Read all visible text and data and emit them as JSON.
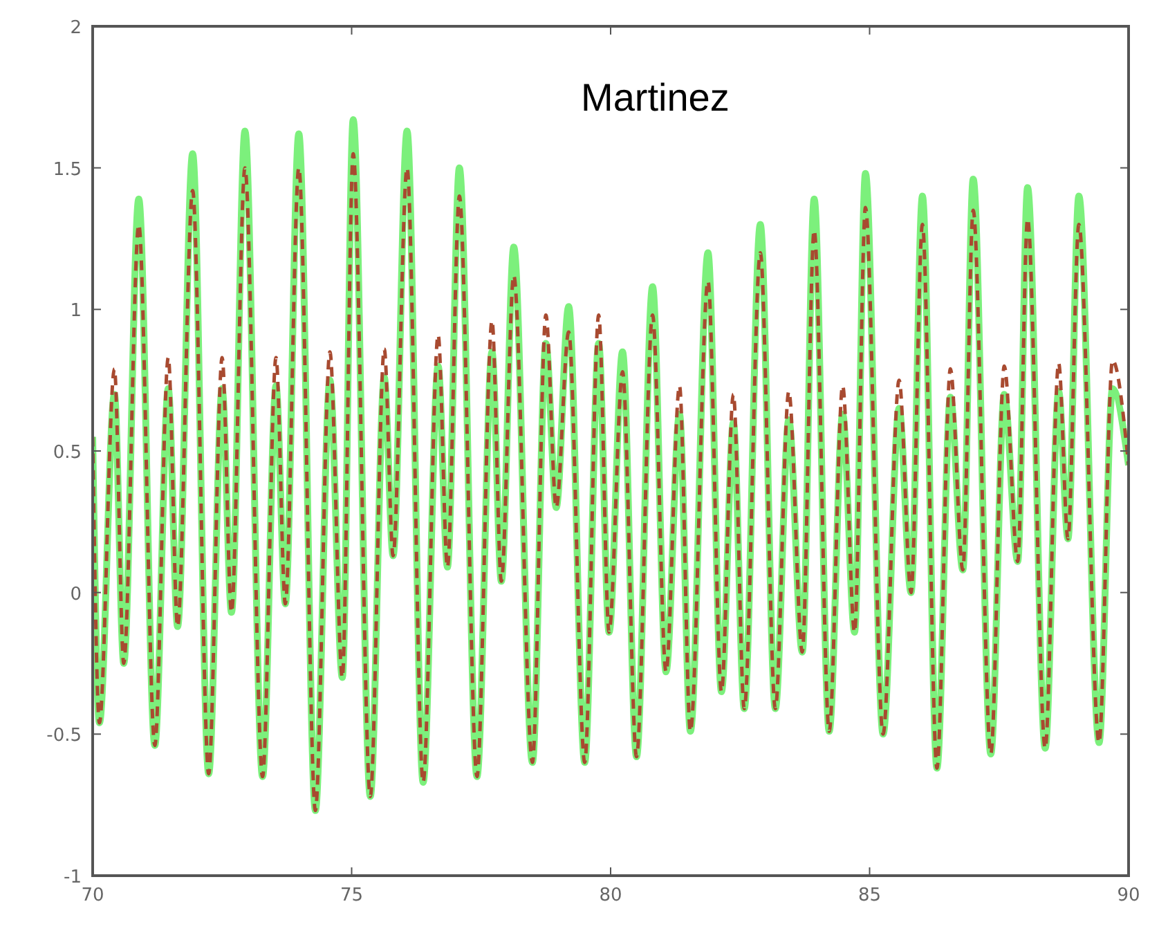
{
  "chart_data": {
    "type": "line",
    "annotations": [
      "Martinez"
    ],
    "x": [
      70.0,
      70.13,
      70.42,
      70.6,
      70.89,
      71.2,
      71.46,
      71.64,
      71.93,
      72.24,
      72.5,
      72.68,
      72.94,
      73.28,
      73.54,
      73.72,
      73.98,
      74.3,
      74.58,
      74.82,
      75.03,
      75.36,
      75.63,
      75.8,
      76.07,
      76.38,
      76.67,
      76.85,
      77.08,
      77.42,
      77.71,
      77.89,
      78.13,
      78.49,
      78.75,
      78.95,
      79.19,
      79.5,
      79.77,
      79.97,
      80.23,
      80.5,
      80.81,
      81.07,
      81.33,
      81.54,
      81.88,
      82.14,
      82.37,
      82.58,
      82.89,
      83.18,
      83.44,
      83.7,
      83.93,
      84.22,
      84.48,
      84.71,
      84.92,
      85.26,
      85.57,
      85.8,
      86.02,
      86.3,
      86.56,
      86.8,
      87.0,
      87.34,
      87.6,
      87.86,
      88.05,
      88.39,
      88.65,
      88.83,
      89.04,
      89.43,
      89.69,
      90.0
    ],
    "series": [
      {
        "color": "#7cf07c",
        "line_style": "solid",
        "values": [
          0.55,
          -0.46,
          0.7,
          -0.25,
          1.39,
          -0.54,
          0.72,
          -0.12,
          1.55,
          -0.64,
          0.72,
          -0.07,
          1.63,
          -0.65,
          0.73,
          -0.04,
          1.62,
          -0.77,
          0.75,
          -0.3,
          1.67,
          -0.72,
          0.76,
          0.13,
          1.63,
          -0.67,
          0.8,
          0.09,
          1.5,
          -0.65,
          0.85,
          0.04,
          1.22,
          -0.6,
          0.88,
          0.3,
          1.01,
          -0.6,
          0.88,
          -0.14,
          0.85,
          -0.58,
          1.08,
          -0.28,
          0.63,
          -0.49,
          1.2,
          -0.35,
          0.6,
          -0.41,
          1.3,
          -0.41,
          0.61,
          -0.21,
          1.39,
          -0.49,
          0.63,
          -0.14,
          1.48,
          -0.5,
          0.65,
          0.0,
          1.4,
          -0.62,
          0.69,
          0.08,
          1.46,
          -0.57,
          0.7,
          0.11,
          1.43,
          -0.55,
          0.71,
          0.19,
          1.4,
          -0.53,
          0.72,
          0.45
        ]
      },
      {
        "color": "#a84a30",
        "line_style": "dashed",
        "values": [
          0.55,
          -0.46,
          0.79,
          -0.25,
          1.3,
          -0.54,
          0.83,
          -0.12,
          1.42,
          -0.64,
          0.83,
          -0.07,
          1.5,
          -0.65,
          0.83,
          -0.04,
          1.5,
          -0.77,
          0.85,
          -0.3,
          1.55,
          -0.72,
          0.86,
          0.13,
          1.5,
          -0.67,
          0.91,
          0.09,
          1.4,
          -0.65,
          0.96,
          0.04,
          1.12,
          -0.6,
          0.98,
          0.3,
          0.92,
          -0.6,
          0.98,
          -0.14,
          0.78,
          -0.58,
          0.98,
          -0.28,
          0.73,
          -0.49,
          1.1,
          -0.35,
          0.7,
          -0.41,
          1.2,
          -0.41,
          0.71,
          -0.21,
          1.28,
          -0.49,
          0.73,
          -0.14,
          1.36,
          -0.5,
          0.75,
          0.0,
          1.3,
          -0.62,
          0.79,
          0.08,
          1.35,
          -0.57,
          0.8,
          0.11,
          1.32,
          -0.55,
          0.81,
          0.19,
          1.3,
          -0.53,
          0.82,
          0.45
        ]
      }
    ],
    "xlim": [
      70,
      90
    ],
    "xticks": [
      70,
      75,
      80,
      85,
      90
    ],
    "ylim": [
      -1,
      2
    ],
    "yticks": [
      -1,
      -0.5,
      0,
      0.5,
      1,
      1.5,
      2
    ],
    "marker": "none"
  }
}
